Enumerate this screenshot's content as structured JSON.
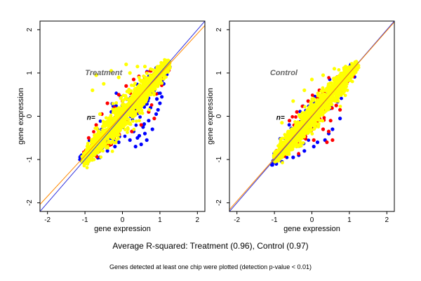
{
  "chart_data": [
    {
      "type": "scatter",
      "title": "Treatment",
      "n_label": "n=",
      "xlabel": "gene expression",
      "ylabel": "gene expression",
      "xlim": [
        -2.2,
        2.2
      ],
      "ylim": [
        -2.2,
        2.2
      ],
      "x_ticks": [
        -2,
        -1,
        0,
        1,
        2
      ],
      "y_ticks": [
        -2,
        -1,
        0,
        1,
        2
      ],
      "grid": false,
      "reference_lines": [
        {
          "slope": 1.0,
          "intercept": 0.0,
          "color": "#3333dd"
        },
        {
          "slope": 0.94,
          "intercept": 0.03,
          "color": "#ff8800"
        }
      ],
      "series": [
        {
          "color": "#0000ff",
          "cloud": {
            "x_range": [
              -1.1,
              1.25
            ],
            "spread": 0.4,
            "count": 200
          },
          "points": [
            [
              0.55,
              -0.25
            ],
            [
              0.7,
              -0.1
            ],
            [
              0.9,
              0.05
            ],
            [
              0.6,
              -0.4
            ],
            [
              0.8,
              -0.3
            ],
            [
              0.95,
              0.15
            ],
            [
              1.0,
              0.3
            ],
            [
              1.05,
              0.45
            ],
            [
              0.4,
              -0.5
            ],
            [
              0.65,
              -0.55
            ],
            [
              0.85,
              0.6
            ],
            [
              0.75,
              0.2
            ],
            [
              0.3,
              -0.35
            ],
            [
              -0.2,
              -0.7
            ],
            [
              -0.4,
              -0.8
            ],
            [
              -0.6,
              -0.95
            ],
            [
              -0.8,
              -1.0
            ],
            [
              0.5,
              -0.65
            ],
            [
              0.2,
              -0.55
            ],
            [
              1.1,
              0.75
            ],
            [
              0.35,
              -0.7
            ],
            [
              0.58,
              -0.18
            ],
            [
              0.92,
              0.4
            ],
            [
              0.45,
              -0.45
            ],
            [
              -0.1,
              -0.6
            ]
          ]
        },
        {
          "color": "#ff0000",
          "cloud": {
            "x_range": [
              -1.0,
              1.2
            ],
            "spread": 0.32,
            "count": 150
          },
          "points": [
            [
              -0.4,
              0.3
            ],
            [
              -0.1,
              0.5
            ],
            [
              0.1,
              0.7
            ],
            [
              0.3,
              0.85
            ],
            [
              0.5,
              -0.2
            ],
            [
              0.7,
              0.1
            ],
            [
              -0.7,
              -0.2
            ],
            [
              -0.9,
              -0.5
            ],
            [
              0.95,
              1.1
            ],
            [
              0.6,
              0.9
            ],
            [
              -0.55,
              0.05
            ],
            [
              0.85,
              -0.05
            ],
            [
              0.25,
              -0.35
            ],
            [
              -0.3,
              -0.65
            ],
            [
              0.0,
              0.35
            ],
            [
              1.0,
              0.95
            ],
            [
              -0.75,
              -0.85
            ]
          ]
        },
        {
          "color": "#ffff00",
          "cloud": {
            "x_range": [
              -1.05,
              1.25
            ],
            "spread": 0.3,
            "count": 1400
          },
          "points": [
            [
              -0.7,
              0.95
            ],
            [
              -0.3,
              1.05
            ],
            [
              0.1,
              1.2
            ],
            [
              0.4,
              1.15
            ],
            [
              -0.5,
              0.75
            ],
            [
              0.2,
              1.0
            ],
            [
              -0.1,
              0.9
            ],
            [
              -0.8,
              0.6
            ],
            [
              0.6,
              1.15
            ],
            [
              -0.6,
              0.05
            ]
          ]
        }
      ]
    },
    {
      "type": "scatter",
      "title": "Control",
      "n_label": "n=",
      "xlabel": "gene expression",
      "ylabel": "gene expression",
      "xlim": [
        -2.2,
        2.2
      ],
      "ylim": [
        -2.2,
        2.2
      ],
      "x_ticks": [
        -2,
        -1,
        0,
        1,
        2
      ],
      "y_ticks": [
        -2,
        -1,
        0,
        1,
        2
      ],
      "grid": false,
      "reference_lines": [
        {
          "slope": 1.0,
          "intercept": 0.0,
          "color": "#3333dd"
        },
        {
          "slope": 0.985,
          "intercept": 0.01,
          "color": "#ff8800"
        }
      ],
      "series": [
        {
          "color": "#0000ff",
          "cloud": {
            "x_range": [
              -1.1,
              1.2
            ],
            "spread": 0.3,
            "count": 180
          },
          "points": [
            [
              0.15,
              -0.6
            ],
            [
              0.35,
              -0.55
            ],
            [
              -0.2,
              -0.8
            ],
            [
              -0.5,
              -0.95
            ],
            [
              -0.8,
              -1.05
            ],
            [
              0.55,
              -0.3
            ],
            [
              0.75,
              -0.05
            ],
            [
              -0.95,
              -1.1
            ],
            [
              0.05,
              -0.7
            ],
            [
              -0.35,
              -0.9
            ],
            [
              0.45,
              -0.4
            ]
          ]
        },
        {
          "color": "#ff0000",
          "cloud": {
            "x_range": [
              -0.95,
              1.15
            ],
            "spread": 0.3,
            "count": 140
          },
          "points": [
            [
              0.3,
              -0.3
            ],
            [
              0.45,
              -0.35
            ],
            [
              0.55,
              -0.55
            ],
            [
              -0.1,
              0.35
            ],
            [
              0.2,
              0.6
            ],
            [
              0.75,
              0.15
            ],
            [
              0.65,
              0.25
            ],
            [
              -0.6,
              -0.1
            ],
            [
              0.05,
              -0.55
            ],
            [
              0.85,
              0.95
            ],
            [
              0.4,
              -0.6
            ],
            [
              -0.4,
              0.1
            ],
            [
              0.5,
              -0.1
            ]
          ]
        },
        {
          "color": "#ffff00",
          "cloud": {
            "x_range": [
              -1.0,
              1.2
            ],
            "spread": 0.26,
            "count": 1300
          },
          "points": [
            [
              -0.6,
              -0.5
            ],
            [
              -0.2,
              0.6
            ],
            [
              0.3,
              0.95
            ],
            [
              0.0,
              0.85
            ],
            [
              -0.5,
              0.35
            ],
            [
              0.6,
              1.1
            ],
            [
              -0.8,
              -0.15
            ],
            [
              0.9,
              1.15
            ]
          ]
        }
      ]
    }
  ],
  "captions": {
    "main": "Average R-squared: Treatment (0.96), Control (0.97)",
    "note": "Genes detected at least one chip were plotted (detection p-value < 0.01)"
  }
}
